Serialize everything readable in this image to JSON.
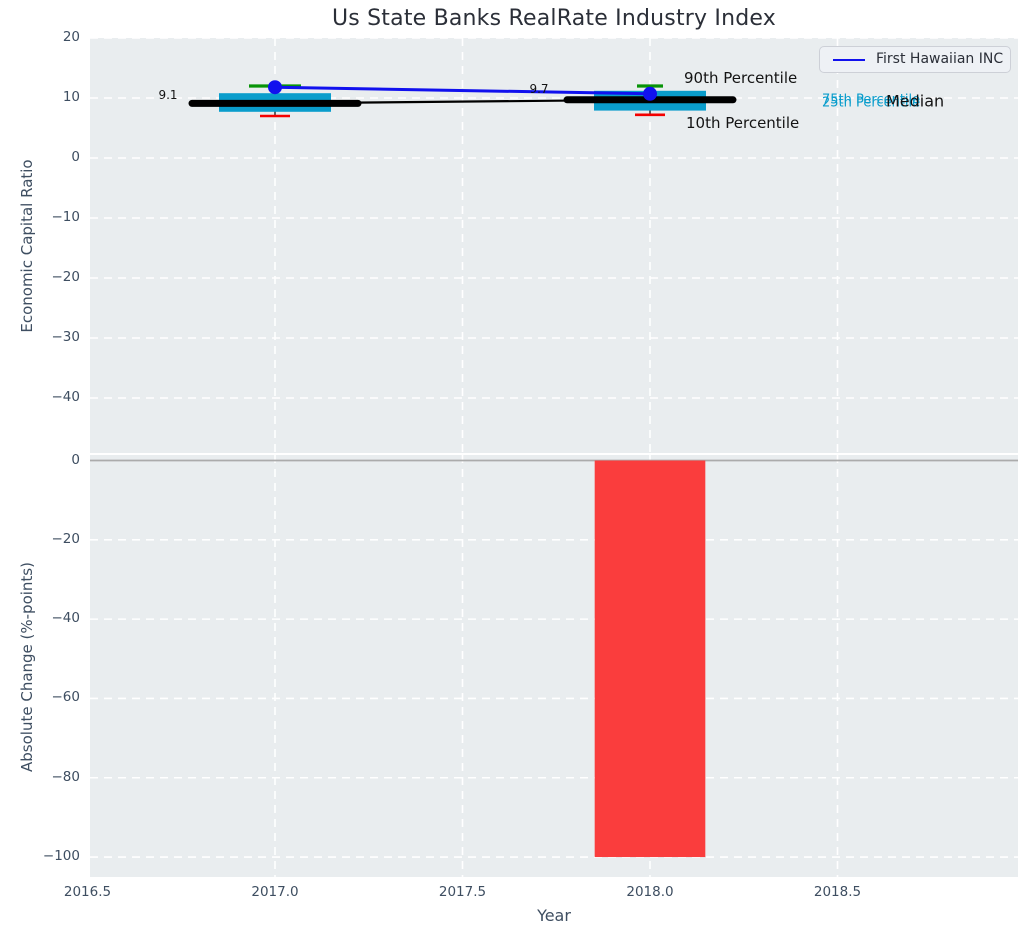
{
  "window": {
    "title": "Us State Banks RealRate Industry Index"
  },
  "colors": {
    "figure_bg": "#ffffff",
    "plot_bg": "#e9edef",
    "grid": "#ffffff",
    "zero_line": "#ababab",
    "bar_red": "#fa3d3d",
    "box_cyan": "#0a9dcc",
    "fhb_blue": "#1111ee",
    "median_black": "#000000",
    "p90_green": "#089408",
    "p10_red": "#f40000",
    "whisker": "#222222",
    "tick_text": "#3e4e61",
    "title_text": "#2b2f38",
    "annotation_dark": "#141414",
    "legend_bg": "#eef1f5",
    "legend_border": "#cdd0d7"
  },
  "legend": {
    "label": "First Hawaiian INC",
    "position": "upper right",
    "color": "#1111ee"
  },
  "chart_data": [
    {
      "type": "line",
      "panel": "top",
      "title": "Us State Banks RealRate Industry Index",
      "ylabel": "Economic Capital Ratio",
      "grid": true,
      "x": [
        2017,
        2018
      ],
      "xlim": [
        2016.5,
        2018.98
      ],
      "ylim": [
        -49.2,
        20
      ],
      "ytick_values": [
        20,
        10,
        0,
        -10,
        -20,
        -30,
        -40
      ],
      "ytick_labels": [
        "20",
        "10",
        "0",
        "−10",
        "−20",
        "−30",
        "−40"
      ],
      "series": [
        {
          "name": "First Hawaiian INC",
          "style": "line-marker",
          "color_key": "fhb_blue",
          "values": [
            11.8,
            10.7
          ]
        },
        {
          "name": "Median",
          "style": "line-thick-segments",
          "color_key": "median_black",
          "values": [
            9.1,
            9.7
          ],
          "value_labels": [
            "9.1",
            "9.7"
          ]
        },
        {
          "name": "75th Percentile",
          "style": "box-top",
          "color_key": "box_cyan",
          "values": [
            10.8,
            11.2
          ]
        },
        {
          "name": "25th Percentile",
          "style": "box-bottom",
          "color_key": "box_cyan",
          "values": [
            7.7,
            7.9
          ]
        },
        {
          "name": "90th Percentile",
          "style": "cap",
          "color_key": "p90_green",
          "values": [
            12.0,
            12.0
          ]
        },
        {
          "name": "10th Percentile",
          "style": "cap",
          "color_key": "p10_red",
          "values": [
            7.0,
            7.2
          ]
        }
      ],
      "annotations": [
        {
          "text": "9.1",
          "color_key": "annotation_dark",
          "size": 12
        },
        {
          "text": "9.7",
          "color_key": "annotation_dark",
          "size": 12
        },
        {
          "text": "90th Percentile",
          "color_key": "annotation_dark",
          "size": 15
        },
        {
          "text": "10th Percentile",
          "color_key": "annotation_dark",
          "size": 15
        },
        {
          "text": "75th Percentile",
          "color_key": "box_cyan",
          "size": 13
        },
        {
          "text": "25th Percentile",
          "color_key": "box_cyan",
          "size": 13
        },
        {
          "text": "Median",
          "color_key": "annotation_dark",
          "size": 16
        }
      ]
    },
    {
      "type": "bar",
      "panel": "bottom",
      "ylabel": "Absolute Change (%-points)",
      "xlabel": "Year",
      "grid": true,
      "zero_line": true,
      "x": [
        2018
      ],
      "values": [
        -100
      ],
      "bar_width_years": 0.295,
      "bar_color_key": "bar_red",
      "ylim": [
        -105,
        3.9
      ],
      "ytick_values": [
        0,
        -20,
        -40,
        -60,
        -80,
        -100
      ],
      "ytick_labels": [
        "0",
        "−20",
        "−40",
        "−60",
        "−80",
        "−100"
      ],
      "xtick_values": [
        2016.5,
        2017.0,
        2017.5,
        2018.0,
        2018.5
      ],
      "xtick_labels": [
        "2016.5",
        "2017.0",
        "2017.5",
        "2018.0",
        "2018.5"
      ]
    }
  ]
}
